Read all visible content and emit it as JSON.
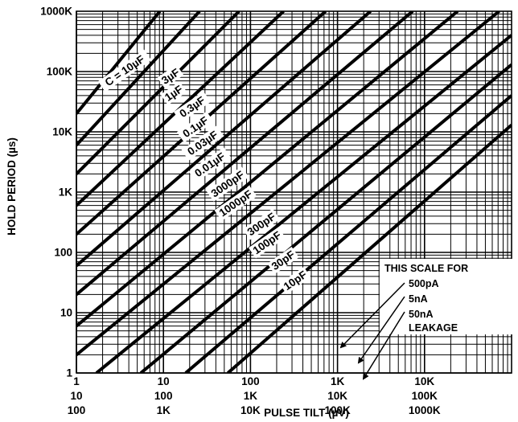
{
  "chart_data": {
    "type": "line",
    "xlabel": "PULSE TILT (µV)",
    "ylabel": "HOLD PERIOD (µs)",
    "x_scale": "log",
    "y_scale": "log",
    "xlim": [
      1,
      100000
    ],
    "ylim": [
      1,
      1000000
    ],
    "grid": true,
    "y_ticks": [
      {
        "value": 1,
        "label": "1"
      },
      {
        "value": 10,
        "label": "10"
      },
      {
        "value": 100,
        "label": "100"
      },
      {
        "value": 1000,
        "label": "1K"
      },
      {
        "value": 10000,
        "label": "10K"
      },
      {
        "value": 100000,
        "label": "100K"
      },
      {
        "value": 1000000,
        "label": "1000K"
      }
    ],
    "x_ticks": [
      {
        "value": 1,
        "labels": [
          "1",
          "10",
          "100"
        ]
      },
      {
        "value": 10,
        "labels": [
          "10",
          "100",
          "1K"
        ]
      },
      {
        "value": 100,
        "labels": [
          "100",
          "1K",
          "10K"
        ]
      },
      {
        "value": 1000,
        "labels": [
          "1K",
          "10K",
          "100K"
        ]
      },
      {
        "value": 10000,
        "labels": [
          "10K",
          "100K",
          "1000K"
        ]
      }
    ],
    "series": [
      {
        "name": "C = 10µF",
        "points": [
          [
            1,
            20000
          ],
          [
            9.1,
            1000000
          ]
        ]
      },
      {
        "name": "3µF",
        "points": [
          [
            1,
            6000
          ],
          [
            26,
            1000000
          ]
        ]
      },
      {
        "name": "1µF",
        "points": [
          [
            1,
            2000
          ],
          [
            74,
            1000000
          ]
        ]
      },
      {
        "name": "0.3µF",
        "points": [
          [
            1,
            600
          ],
          [
            240,
            1000000
          ]
        ]
      },
      {
        "name": "0.1µF",
        "points": [
          [
            1,
            200
          ],
          [
            730,
            1000000
          ]
        ]
      },
      {
        "name": "0.03µF",
        "points": [
          [
            1,
            60
          ],
          [
            2400,
            1000000
          ]
        ]
      },
      {
        "name": "0.01µF",
        "points": [
          [
            1,
            20
          ],
          [
            7300,
            1000000
          ]
        ]
      },
      {
        "name": "3000pF",
        "points": [
          [
            1,
            6
          ],
          [
            24000,
            1000000
          ]
        ]
      },
      {
        "name": "1000pF",
        "points": [
          [
            1,
            2
          ],
          [
            72000,
            1000000
          ]
        ]
      },
      {
        "name": "300pF",
        "points": [
          [
            1.7,
            1
          ],
          [
            100000,
            400000
          ]
        ]
      },
      {
        "name": "100pF",
        "points": [
          [
            5.5,
            1
          ],
          [
            100000,
            130000
          ]
        ]
      },
      {
        "name": "30pF",
        "points": [
          [
            18,
            1
          ],
          [
            100000,
            40000
          ]
        ]
      },
      {
        "name": "10pF",
        "points": [
          [
            55,
            1
          ],
          [
            100000,
            13000
          ]
        ]
      }
    ],
    "annotation": {
      "lines": [
        "THIS SCALE FOR",
        "500pA",
        "5nA",
        "50nA",
        "LEAKAGE"
      ]
    }
  }
}
